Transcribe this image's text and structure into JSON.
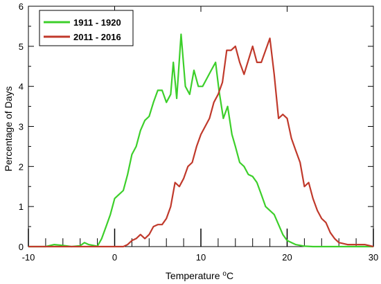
{
  "chart_data": {
    "type": "line",
    "title": "",
    "xlabel": "Temperature",
    "xlabel_unit": "°C",
    "ylabel": "Percentage of Days",
    "xlim": [
      -10,
      30
    ],
    "ylim": [
      0,
      6
    ],
    "x_ticks": [
      -10,
      0,
      10,
      20,
      30
    ],
    "y_ticks": [
      0,
      1,
      2,
      3,
      4,
      5,
      6
    ],
    "grid": false,
    "legend_position": "top-left",
    "series": [
      {
        "name": "1911 - 1920",
        "color": "#3ccf2a",
        "points": [
          [
            -10,
            0
          ],
          [
            -9,
            0
          ],
          [
            -8,
            0
          ],
          [
            -7,
            0.05
          ],
          [
            -6,
            0.03
          ],
          [
            -5,
            0
          ],
          [
            -4,
            0.02
          ],
          [
            -3.5,
            0.1
          ],
          [
            -3,
            0.05
          ],
          [
            -2,
            0.01
          ],
          [
            -1.5,
            0.2
          ],
          [
            -1,
            0.5
          ],
          [
            -0.5,
            0.8
          ],
          [
            0,
            1.2
          ],
          [
            0.5,
            1.3
          ],
          [
            1,
            1.4
          ],
          [
            1.5,
            1.8
          ],
          [
            2,
            2.3
          ],
          [
            2.5,
            2.5
          ],
          [
            3,
            2.9
          ],
          [
            3.5,
            3.15
          ],
          [
            4,
            3.25
          ],
          [
            4.5,
            3.6
          ],
          [
            5,
            3.9
          ],
          [
            5.5,
            3.9
          ],
          [
            6,
            3.6
          ],
          [
            6.5,
            3.8
          ],
          [
            6.8,
            4.6
          ],
          [
            7.2,
            3.7
          ],
          [
            7.7,
            5.3
          ],
          [
            8.2,
            4.0
          ],
          [
            8.7,
            3.8
          ],
          [
            9.2,
            4.4
          ],
          [
            9.7,
            4.0
          ],
          [
            10.2,
            4.0
          ],
          [
            10.7,
            4.2
          ],
          [
            11.2,
            4.4
          ],
          [
            11.7,
            4.6
          ],
          [
            12.1,
            3.9
          ],
          [
            12.6,
            3.2
          ],
          [
            13.1,
            3.5
          ],
          [
            13.6,
            2.8
          ],
          [
            14,
            2.5
          ],
          [
            14.5,
            2.1
          ],
          [
            15,
            2.0
          ],
          [
            15.5,
            1.8
          ],
          [
            16,
            1.75
          ],
          [
            16.5,
            1.6
          ],
          [
            17,
            1.3
          ],
          [
            17.5,
            1.0
          ],
          [
            18,
            0.9
          ],
          [
            18.5,
            0.8
          ],
          [
            19,
            0.55
          ],
          [
            19.5,
            0.3
          ],
          [
            20,
            0.15
          ],
          [
            21,
            0.05
          ],
          [
            22,
            0.01
          ],
          [
            23,
            0
          ],
          [
            25,
            0
          ],
          [
            30,
            0
          ]
        ]
      },
      {
        "name": "2011 - 2016",
        "color": "#c0392b",
        "points": [
          [
            -10,
            0
          ],
          [
            0,
            0
          ],
          [
            1,
            0
          ],
          [
            1.5,
            0.05
          ],
          [
            2,
            0.15
          ],
          [
            2.5,
            0.2
          ],
          [
            3,
            0.3
          ],
          [
            3.5,
            0.2
          ],
          [
            4,
            0.3
          ],
          [
            4.5,
            0.5
          ],
          [
            5,
            0.55
          ],
          [
            5.5,
            0.55
          ],
          [
            6,
            0.7
          ],
          [
            6.5,
            1.0
          ],
          [
            7,
            1.6
          ],
          [
            7.5,
            1.5
          ],
          [
            8,
            1.7
          ],
          [
            8.5,
            2.0
          ],
          [
            9,
            2.1
          ],
          [
            9.5,
            2.5
          ],
          [
            10,
            2.8
          ],
          [
            10.5,
            3.0
          ],
          [
            11,
            3.2
          ],
          [
            11.5,
            3.6
          ],
          [
            12,
            3.8
          ],
          [
            12.5,
            4.1
          ],
          [
            13,
            4.9
          ],
          [
            13.5,
            4.9
          ],
          [
            14,
            5.0
          ],
          [
            14.5,
            4.6
          ],
          [
            15,
            4.3
          ],
          [
            15.5,
            4.65
          ],
          [
            16,
            5.0
          ],
          [
            16.5,
            4.6
          ],
          [
            17,
            4.6
          ],
          [
            17.5,
            4.9
          ],
          [
            18,
            5.2
          ],
          [
            18.5,
            4.3
          ],
          [
            19,
            3.2
          ],
          [
            19.5,
            3.3
          ],
          [
            20,
            3.2
          ],
          [
            20.5,
            2.7
          ],
          [
            21,
            2.4
          ],
          [
            21.5,
            2.1
          ],
          [
            22,
            1.5
          ],
          [
            22.5,
            1.6
          ],
          [
            23,
            1.2
          ],
          [
            23.5,
            0.9
          ],
          [
            24,
            0.7
          ],
          [
            24.5,
            0.6
          ],
          [
            25,
            0.35
          ],
          [
            25.5,
            0.2
          ],
          [
            26,
            0.1
          ],
          [
            27,
            0.05
          ],
          [
            28,
            0.05
          ],
          [
            29,
            0.05
          ],
          [
            30,
            0
          ]
        ]
      }
    ]
  }
}
